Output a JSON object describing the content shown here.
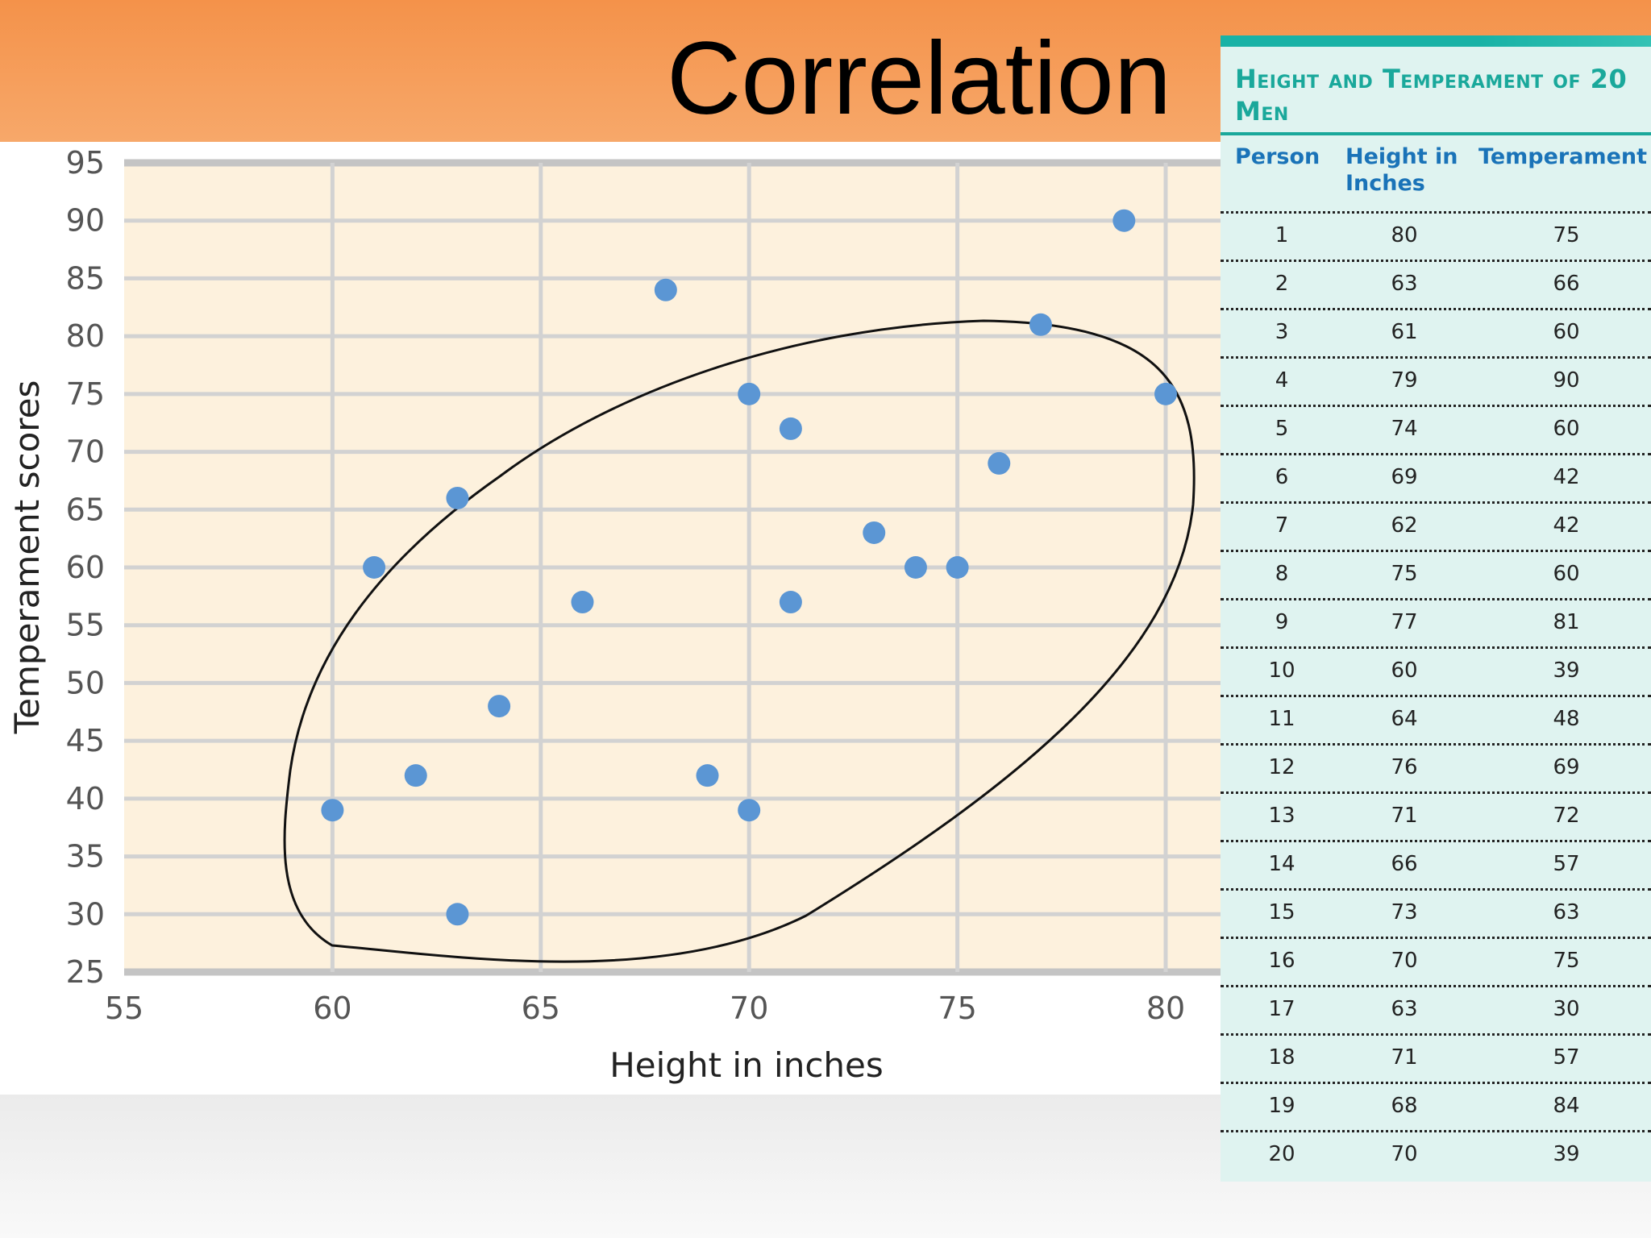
{
  "slide": {
    "title": "Correlation"
  },
  "colors": {
    "header_orange": "#f4924a",
    "plot_background": "#fdf1dd",
    "gridline": "#cfcfcf",
    "point_blue": "#5b96d4",
    "table_background": "#dff3f0",
    "table_title_teal": "#1aa89b",
    "table_header_blue": "#1a73b8"
  },
  "chart_data": {
    "type": "scatter",
    "xlabel": "Height in inches",
    "ylabel": "Temperament scores",
    "xlim": [
      55,
      80
    ],
    "ylim": [
      25,
      95
    ],
    "xticks": [
      55,
      60,
      65,
      70,
      75,
      80
    ],
    "yticks": [
      25,
      30,
      35,
      40,
      45,
      50,
      55,
      60,
      65,
      70,
      75,
      80,
      85,
      90,
      95
    ],
    "grid": true,
    "annotation": "ellipse enclosing all points",
    "points": [
      {
        "x": 80,
        "y": 75
      },
      {
        "x": 63,
        "y": 66
      },
      {
        "x": 61,
        "y": 60
      },
      {
        "x": 79,
        "y": 90
      },
      {
        "x": 74,
        "y": 60
      },
      {
        "x": 69,
        "y": 42
      },
      {
        "x": 62,
        "y": 42
      },
      {
        "x": 75,
        "y": 60
      },
      {
        "x": 77,
        "y": 81
      },
      {
        "x": 60,
        "y": 39
      },
      {
        "x": 64,
        "y": 48
      },
      {
        "x": 76,
        "y": 69
      },
      {
        "x": 71,
        "y": 72
      },
      {
        "x": 66,
        "y": 57
      },
      {
        "x": 73,
        "y": 63
      },
      {
        "x": 70,
        "y": 75
      },
      {
        "x": 63,
        "y": 30
      },
      {
        "x": 71,
        "y": 57
      },
      {
        "x": 68,
        "y": 84
      },
      {
        "x": 70,
        "y": 39
      }
    ]
  },
  "table": {
    "title": "Height and Temperament of 20 Men",
    "headers": [
      "Person",
      "Height in Inches",
      "Temperament"
    ],
    "rows": [
      [
        "1",
        "80",
        "75"
      ],
      [
        "2",
        "63",
        "66"
      ],
      [
        "3",
        "61",
        "60"
      ],
      [
        "4",
        "79",
        "90"
      ],
      [
        "5",
        "74",
        "60"
      ],
      [
        "6",
        "69",
        "42"
      ],
      [
        "7",
        "62",
        "42"
      ],
      [
        "8",
        "75",
        "60"
      ],
      [
        "9",
        "77",
        "81"
      ],
      [
        "10",
        "60",
        "39"
      ],
      [
        "11",
        "64",
        "48"
      ],
      [
        "12",
        "76",
        "69"
      ],
      [
        "13",
        "71",
        "72"
      ],
      [
        "14",
        "66",
        "57"
      ],
      [
        "15",
        "73",
        "63"
      ],
      [
        "16",
        "70",
        "75"
      ],
      [
        "17",
        "63",
        "30"
      ],
      [
        "18",
        "71",
        "57"
      ],
      [
        "19",
        "68",
        "84"
      ],
      [
        "20",
        "70",
        "39"
      ]
    ]
  }
}
